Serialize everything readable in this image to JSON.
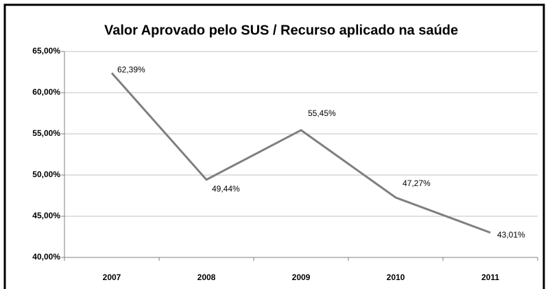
{
  "chart_data": {
    "type": "line",
    "title": "Valor Aprovado pelo SUS / Recurso aplicado na saúde",
    "categories": [
      "2007",
      "2008",
      "2009",
      "2010",
      "2011"
    ],
    "series": [
      {
        "name": "Valor Aprovado pelo SUS / Recurso aplicado na saúde",
        "color": "#7f7f7f",
        "values": [
          62.39,
          49.44,
          55.45,
          47.27,
          43.01
        ],
        "value_labels": [
          "62,39%",
          "49,44%",
          "55,45%",
          "47,27%",
          "43,01%"
        ]
      }
    ],
    "ylim": [
      40,
      65
    ],
    "yticks": [
      {
        "value": 40,
        "label": "40,00%"
      },
      {
        "value": 45,
        "label": "45,00%"
      },
      {
        "value": 50,
        "label": "50,00%"
      },
      {
        "value": 55,
        "label": "55,00%"
      },
      {
        "value": 60,
        "label": "60,00%"
      },
      {
        "value": 65,
        "label": "65,00%"
      }
    ],
    "grid": true
  }
}
